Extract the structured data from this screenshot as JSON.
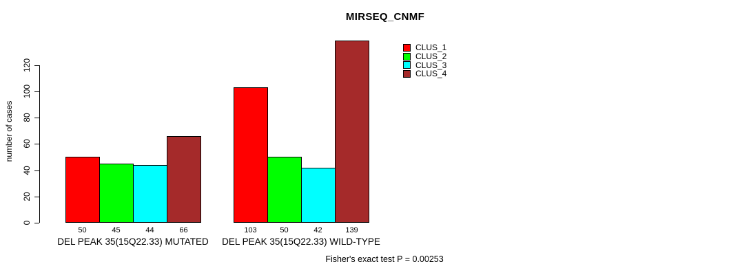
{
  "title": "MIRSEQ_CNMF",
  "chart_data": {
    "type": "bar",
    "title": "MIRSEQ_CNMF",
    "ylabel": "number of cases",
    "xlabel": "",
    "ylim": [
      0,
      139
    ],
    "yticks": [
      0,
      20,
      40,
      60,
      80,
      100,
      120
    ],
    "grid": false,
    "legend_position": "top-right",
    "categories": [
      "DEL PEAK 35(15Q22.33) MUTATED",
      "DEL PEAK 35(15Q22.33) WILD-TYPE"
    ],
    "series": [
      {
        "name": "CLUS_1",
        "color": "#ff0000",
        "values": [
          50,
          103
        ]
      },
      {
        "name": "CLUS_2",
        "color": "#00ff00",
        "values": [
          45,
          50
        ]
      },
      {
        "name": "CLUS_3",
        "color": "#00ffff",
        "values": [
          44,
          42
        ]
      },
      {
        "name": "CLUS_4",
        "color": "#a52a2a",
        "values": [
          66,
          139
        ]
      }
    ],
    "bar_value_labels": [
      [
        "50",
        "45",
        "44",
        "66"
      ],
      [
        "103",
        "50",
        "42",
        "139"
      ]
    ],
    "annotation": "Fisher's exact test P = 0.00253"
  }
}
